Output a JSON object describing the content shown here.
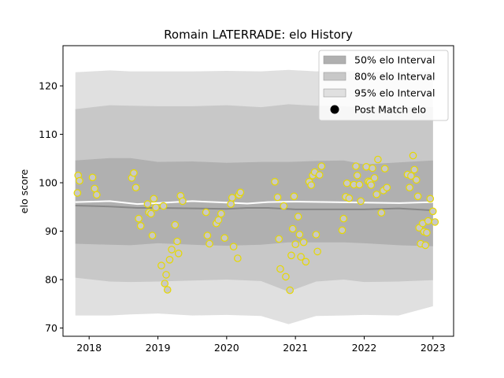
{
  "chart_data": {
    "type": "scatter",
    "title": "Romain LATERRADE: elo History",
    "xlabel": "",
    "ylabel": "elo score",
    "xlim": [
      2017.62,
      2023.3
    ],
    "ylim": [
      68.3,
      128.3
    ],
    "xticks": [
      2018,
      2019,
      2020,
      2021,
      2022,
      2023
    ],
    "xtick_labels": [
      "2018",
      "2019",
      "2020",
      "2021",
      "2022",
      "2023"
    ],
    "yticks": [
      70,
      80,
      90,
      100,
      110,
      120
    ],
    "ytick_labels": [
      "70",
      "80",
      "90",
      "100",
      "110",
      "120"
    ],
    "grid": false,
    "legend_position": "top-right",
    "legend": [
      {
        "label": "50% elo Interval",
        "kind": "band",
        "color": "#b0b0b0"
      },
      {
        "label": "80% elo Interval",
        "kind": "band",
        "color": "#c8c8c8"
      },
      {
        "label": "95% elo Interval",
        "kind": "band",
        "color": "#e0e0e0"
      },
      {
        "label": "Post Match elo",
        "kind": "marker",
        "color": "#000000"
      }
    ],
    "bands": [
      {
        "name": "95% elo Interval",
        "color": "#e0e0e0",
        "x": [
          2017.8,
          2018.3,
          2018.6,
          2019.0,
          2019.5,
          2020.0,
          2020.5,
          2020.9,
          2021.3,
          2021.7,
          2022.0,
          2022.5,
          2023.0
        ],
        "upper": [
          122.8,
          123.2,
          123.0,
          123.0,
          123.0,
          123.1,
          123.0,
          123.3,
          123.0,
          123.1,
          122.9,
          123.0,
          123.0
        ],
        "lower": [
          72.6,
          72.6,
          72.8,
          73.0,
          72.6,
          72.7,
          72.5,
          70.8,
          72.5,
          72.6,
          72.7,
          72.6,
          74.5
        ]
      },
      {
        "name": "80% elo Interval",
        "color": "#c8c8c8",
        "x": [
          2017.8,
          2018.3,
          2018.6,
          2019.0,
          2019.5,
          2020.0,
          2020.5,
          2020.9,
          2021.3,
          2021.7,
          2022.0,
          2022.5,
          2023.0
        ],
        "upper": [
          115.2,
          116.0,
          115.9,
          115.8,
          115.8,
          116.0,
          115.6,
          116.2,
          115.9,
          115.8,
          115.5,
          115.7,
          115.6
        ],
        "lower": [
          80.4,
          79.6,
          79.5,
          79.6,
          79.8,
          80.0,
          79.7,
          77.5,
          79.6,
          80.0,
          79.5,
          79.6,
          79.9
        ]
      },
      {
        "name": "50% elo Interval",
        "color": "#b0b0b0",
        "x": [
          2017.8,
          2018.3,
          2018.6,
          2019.0,
          2019.5,
          2020.0,
          2020.5,
          2020.9,
          2021.3,
          2021.7,
          2022.0,
          2022.5,
          2023.0
        ],
        "upper": [
          104.6,
          105.1,
          105.1,
          104.3,
          104.4,
          104.1,
          104.3,
          104.3,
          104.5,
          104.6,
          103.8,
          104.2,
          104.6
        ],
        "lower": [
          87.4,
          87.2,
          87.1,
          87.5,
          87.2,
          87.0,
          87.2,
          87.7,
          87.7,
          87.7,
          87.5,
          87.1,
          86.9
        ]
      }
    ],
    "lines": [
      {
        "name": "mean",
        "color": "#ffffff",
        "x": [
          2017.8,
          2018.3,
          2018.7,
          2019.0,
          2019.5,
          2020.0,
          2020.3,
          2020.6,
          2021.0,
          2021.5,
          2022.0,
          2022.5,
          2023.0
        ],
        "y": [
          96.0,
          96.2,
          95.6,
          95.8,
          96.2,
          95.9,
          95.7,
          96.0,
          96.1,
          96.0,
          95.9,
          95.8,
          96.0
        ]
      },
      {
        "name": "median",
        "color": "#888888",
        "x": [
          2017.8,
          2018.3,
          2018.7,
          2019.0,
          2019.5,
          2020.0,
          2020.3,
          2020.6,
          2021.0,
          2021.5,
          2022.0,
          2022.5,
          2023.0
        ],
        "y": [
          95.3,
          95.1,
          94.8,
          94.8,
          94.7,
          94.6,
          94.8,
          94.8,
          94.5,
          94.5,
          94.5,
          94.7,
          94.3
        ]
      }
    ],
    "points": [
      {
        "x": 2017.83,
        "y": 97.9
      },
      {
        "x": 2017.84,
        "y": 101.5
      },
      {
        "x": 2017.86,
        "y": 100.4
      },
      {
        "x": 2018.05,
        "y": 101.1
      },
      {
        "x": 2018.08,
        "y": 98.8
      },
      {
        "x": 2018.11,
        "y": 97.5
      },
      {
        "x": 2018.62,
        "y": 101.0
      },
      {
        "x": 2018.65,
        "y": 102.0
      },
      {
        "x": 2018.68,
        "y": 99.0
      },
      {
        "x": 2018.72,
        "y": 92.6
      },
      {
        "x": 2018.75,
        "y": 91.1
      },
      {
        "x": 2018.85,
        "y": 95.6
      },
      {
        "x": 2018.87,
        "y": 93.9
      },
      {
        "x": 2018.9,
        "y": 93.6
      },
      {
        "x": 2018.92,
        "y": 89.1
      },
      {
        "x": 2018.94,
        "y": 96.7
      },
      {
        "x": 2018.97,
        "y": 94.9
      },
      {
        "x": 2019.05,
        "y": 82.9
      },
      {
        "x": 2019.08,
        "y": 95.2
      },
      {
        "x": 2019.1,
        "y": 79.2
      },
      {
        "x": 2019.12,
        "y": 81.0
      },
      {
        "x": 2019.14,
        "y": 77.9
      },
      {
        "x": 2019.17,
        "y": 84.1
      },
      {
        "x": 2019.2,
        "y": 86.2
      },
      {
        "x": 2019.25,
        "y": 91.3
      },
      {
        "x": 2019.28,
        "y": 87.9
      },
      {
        "x": 2019.3,
        "y": 85.4
      },
      {
        "x": 2019.33,
        "y": 97.3
      },
      {
        "x": 2019.36,
        "y": 96.2
      },
      {
        "x": 2019.7,
        "y": 93.9
      },
      {
        "x": 2019.72,
        "y": 89.1
      },
      {
        "x": 2019.75,
        "y": 87.4
      },
      {
        "x": 2019.85,
        "y": 91.6
      },
      {
        "x": 2019.88,
        "y": 92.3
      },
      {
        "x": 2019.92,
        "y": 93.6
      },
      {
        "x": 2019.97,
        "y": 88.6
      },
      {
        "x": 2020.06,
        "y": 95.6
      },
      {
        "x": 2020.08,
        "y": 96.9
      },
      {
        "x": 2020.1,
        "y": 86.8
      },
      {
        "x": 2020.16,
        "y": 84.4
      },
      {
        "x": 2020.18,
        "y": 97.5
      },
      {
        "x": 2020.2,
        "y": 98.0
      },
      {
        "x": 2020.7,
        "y": 100.2
      },
      {
        "x": 2020.74,
        "y": 97.0
      },
      {
        "x": 2020.76,
        "y": 88.4
      },
      {
        "x": 2020.78,
        "y": 82.2
      },
      {
        "x": 2020.83,
        "y": 95.2
      },
      {
        "x": 2020.86,
        "y": 80.6
      },
      {
        "x": 2020.92,
        "y": 77.8
      },
      {
        "x": 2020.94,
        "y": 85.0
      },
      {
        "x": 2020.96,
        "y": 90.5
      },
      {
        "x": 2020.98,
        "y": 97.2
      },
      {
        "x": 2021.0,
        "y": 87.3
      },
      {
        "x": 2021.04,
        "y": 93.0
      },
      {
        "x": 2021.06,
        "y": 89.3
      },
      {
        "x": 2021.08,
        "y": 84.7
      },
      {
        "x": 2021.12,
        "y": 87.7
      },
      {
        "x": 2021.15,
        "y": 83.7
      },
      {
        "x": 2021.2,
        "y": 100.2
      },
      {
        "x": 2021.23,
        "y": 99.5
      },
      {
        "x": 2021.25,
        "y": 101.5
      },
      {
        "x": 2021.28,
        "y": 102.2
      },
      {
        "x": 2021.3,
        "y": 89.3
      },
      {
        "x": 2021.32,
        "y": 85.8
      },
      {
        "x": 2021.35,
        "y": 101.6
      },
      {
        "x": 2021.38,
        "y": 103.4
      },
      {
        "x": 2021.68,
        "y": 90.2
      },
      {
        "x": 2021.7,
        "y": 92.6
      },
      {
        "x": 2021.73,
        "y": 97.1
      },
      {
        "x": 2021.75,
        "y": 99.9
      },
      {
        "x": 2021.78,
        "y": 96.8
      },
      {
        "x": 2021.85,
        "y": 99.6
      },
      {
        "x": 2021.88,
        "y": 103.4
      },
      {
        "x": 2021.9,
        "y": 101.5
      },
      {
        "x": 2021.93,
        "y": 99.6
      },
      {
        "x": 2021.95,
        "y": 96.2
      },
      {
        "x": 2022.03,
        "y": 103.3
      },
      {
        "x": 2022.06,
        "y": 100.3
      },
      {
        "x": 2022.08,
        "y": 100.1
      },
      {
        "x": 2022.1,
        "y": 99.5
      },
      {
        "x": 2022.12,
        "y": 103.0
      },
      {
        "x": 2022.15,
        "y": 101.0
      },
      {
        "x": 2022.18,
        "y": 97.6
      },
      {
        "x": 2022.2,
        "y": 104.8
      },
      {
        "x": 2022.25,
        "y": 93.8
      },
      {
        "x": 2022.28,
        "y": 98.4
      },
      {
        "x": 2022.3,
        "y": 102.9
      },
      {
        "x": 2022.33,
        "y": 99.0
      },
      {
        "x": 2022.63,
        "y": 101.7
      },
      {
        "x": 2022.66,
        "y": 99.0
      },
      {
        "x": 2022.68,
        "y": 101.4
      },
      {
        "x": 2022.71,
        "y": 105.6
      },
      {
        "x": 2022.73,
        "y": 102.7
      },
      {
        "x": 2022.76,
        "y": 100.6
      },
      {
        "x": 2022.78,
        "y": 97.2
      },
      {
        "x": 2022.8,
        "y": 90.7
      },
      {
        "x": 2022.82,
        "y": 87.4
      },
      {
        "x": 2022.85,
        "y": 91.6
      },
      {
        "x": 2022.87,
        "y": 89.9
      },
      {
        "x": 2022.89,
        "y": 87.1
      },
      {
        "x": 2022.91,
        "y": 89.7
      },
      {
        "x": 2022.93,
        "y": 92.1
      },
      {
        "x": 2022.96,
        "y": 96.7
      },
      {
        "x": 2023.0,
        "y": 94.1
      },
      {
        "x": 2023.03,
        "y": 91.9
      }
    ]
  }
}
